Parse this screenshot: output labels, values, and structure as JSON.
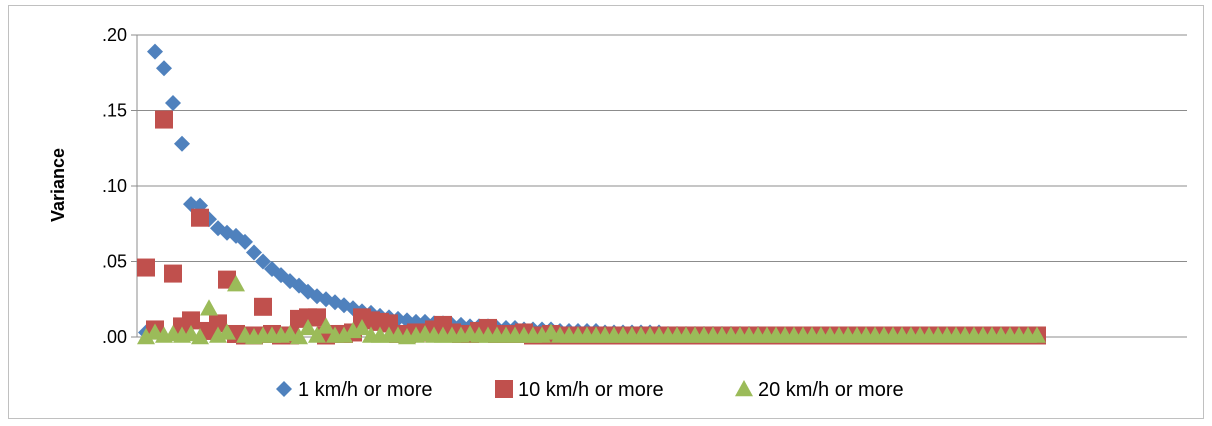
{
  "chart_data": {
    "type": "scatter",
    "title": "",
    "xlabel": "",
    "ylabel": "Variance",
    "ylim": [
      0,
      0.2
    ],
    "yticks": [
      0,
      0.05,
      0.1,
      0.15,
      0.2
    ],
    "ytick_labels": [
      ".00",
      ".05",
      ".10",
      ".15",
      ".20"
    ],
    "xlim": [
      0,
      100
    ],
    "grid": "horizontal",
    "legend_position": "bottom",
    "series": [
      {
        "name": "1 km/h or more",
        "marker": "diamond",
        "color": "#4f81bd",
        "x": [
          1,
          2,
          3,
          4,
          5,
          6,
          7,
          8,
          9,
          10,
          11,
          12,
          13,
          14,
          15,
          16,
          17,
          18,
          19,
          20,
          21,
          22,
          23,
          24,
          25,
          26,
          27,
          28,
          29,
          30,
          31,
          32,
          33,
          34,
          35,
          36,
          37,
          38,
          39,
          40,
          41,
          42,
          43,
          44,
          45,
          46,
          47,
          48,
          49,
          50,
          51,
          52,
          53,
          54,
          55,
          56,
          57,
          58,
          59,
          60,
          61,
          62,
          63,
          64,
          65,
          66,
          67,
          68,
          69,
          70,
          71,
          72,
          73,
          74,
          75,
          76,
          77,
          78,
          79,
          80,
          81,
          82,
          83,
          84,
          85,
          86,
          87,
          88,
          89,
          90,
          91,
          92,
          93,
          94,
          95,
          96,
          97,
          98,
          99,
          100
        ],
        "y": [
          0.003,
          0.189,
          0.178,
          0.155,
          0.128,
          0.088,
          0.087,
          0.078,
          0.072,
          0.069,
          0.067,
          0.063,
          0.056,
          0.05,
          0.045,
          0.041,
          0.037,
          0.034,
          0.03,
          0.027,
          0.025,
          0.023,
          0.021,
          0.019,
          0.017,
          0.016,
          0.014,
          0.013,
          0.012,
          0.011,
          0.01,
          0.01,
          0.009,
          0.009,
          0.008,
          0.008,
          0.007,
          0.007,
          0.007,
          0.006,
          0.006,
          0.006,
          0.005,
          0.005,
          0.005,
          0.005,
          0.004,
          0.004,
          0.004,
          0.004,
          0.004,
          0.003,
          0.003,
          0.003,
          0.003,
          0.003,
          0.003,
          0.003,
          0.002,
          0.002,
          0.002,
          0.002,
          0.002,
          0.002,
          0.002,
          0.002,
          0.002,
          0.002,
          0.002,
          0.001,
          0.001,
          0.001,
          0.001,
          0.001,
          0.001,
          0.001,
          0.001,
          0.001,
          0.001,
          0.001,
          0.001,
          0.001,
          0.001,
          0.001,
          0.001,
          0.001,
          0.001,
          0.001,
          0.001,
          0.001,
          0.001,
          0.001,
          0.001,
          0.001,
          0.001,
          0.001,
          0.001,
          0.001,
          0.001,
          0.001
        ]
      },
      {
        "name": "10 km/h or more",
        "marker": "square",
        "color": "#c0504d",
        "x": [
          1,
          2,
          3,
          4,
          5,
          6,
          7,
          8,
          9,
          10,
          11,
          12,
          13,
          14,
          15,
          16,
          17,
          18,
          19,
          20,
          21,
          22,
          23,
          24,
          25,
          26,
          27,
          28,
          29,
          30,
          31,
          32,
          33,
          34,
          35,
          36,
          37,
          38,
          39,
          40,
          41,
          42,
          43,
          44,
          45,
          46,
          47,
          48,
          49,
          50,
          51,
          52,
          53,
          54,
          55,
          56,
          57,
          58,
          59,
          60,
          61,
          62,
          63,
          64,
          65,
          66,
          67,
          68,
          69,
          70,
          71,
          72,
          73,
          74,
          75,
          76,
          77,
          78,
          79,
          80,
          81,
          82,
          83,
          84,
          85,
          86,
          87,
          88,
          89,
          90,
          91,
          92,
          93,
          94,
          95,
          96,
          97,
          98,
          99,
          100
        ],
        "y": [
          0.046,
          0.005,
          0.144,
          0.042,
          0.007,
          0.011,
          0.079,
          0.004,
          0.009,
          0.038,
          0.002,
          0.001,
          0.001,
          0.02,
          0.002,
          0.001,
          0.001,
          0.012,
          0.013,
          0.013,
          0.001,
          0.002,
          0.002,
          0.003,
          0.013,
          0.011,
          0.01,
          0.009,
          0.002,
          0.002,
          0.003,
          0.003,
          0.005,
          0.008,
          0.003,
          0.002,
          0.002,
          0.004,
          0.006,
          0.002,
          0.002,
          0.002,
          0.003,
          0.001,
          0.001,
          0.002,
          0.001,
          0.001,
          0.001,
          0.001,
          0.001,
          0.001,
          0.001,
          0.001,
          0.001,
          0.001,
          0.001,
          0.001,
          0.001,
          0.001,
          0.001,
          0.001,
          0.001,
          0.001,
          0.001,
          0.001,
          0.001,
          0.001,
          0.001,
          0.001,
          0.001,
          0.001,
          0.001,
          0.001,
          0.001,
          0.001,
          0.001,
          0.001,
          0.001,
          0.001,
          0.001,
          0.001,
          0.001,
          0.001,
          0.001,
          0.001,
          0.001,
          0.001,
          0.001,
          0.001,
          0.001,
          0.001,
          0.001,
          0.001,
          0.001,
          0.001,
          0.001,
          0.001,
          0.001,
          0.001
        ]
      },
      {
        "name": "20 km/h or more",
        "marker": "triangle",
        "color": "#9bbb59",
        "x": [
          1,
          2,
          3,
          4,
          5,
          6,
          7,
          8,
          9,
          10,
          11,
          12,
          13,
          14,
          15,
          16,
          17,
          18,
          19,
          20,
          21,
          22,
          23,
          24,
          25,
          26,
          27,
          28,
          29,
          30,
          31,
          32,
          33,
          34,
          35,
          36,
          37,
          38,
          39,
          40,
          41,
          42,
          43,
          44,
          45,
          46,
          47,
          48,
          49,
          50,
          51,
          52,
          53,
          54,
          55,
          56,
          57,
          58,
          59,
          60,
          61,
          62,
          63,
          64,
          65,
          66,
          67,
          68,
          69,
          70,
          71,
          72,
          73,
          74,
          75,
          76,
          77,
          78,
          79,
          80,
          81,
          82,
          83,
          84,
          85,
          86,
          87,
          88,
          89,
          90,
          91,
          92,
          93,
          94,
          95,
          96,
          97,
          98,
          99,
          100
        ],
        "y": [
          0.0,
          0.003,
          0.001,
          0.002,
          0.001,
          0.002,
          0.0,
          0.019,
          0.001,
          0.003,
          0.035,
          0.001,
          0.0,
          0.001,
          0.001,
          0.001,
          0.002,
          0.0,
          0.006,
          0.001,
          0.007,
          0.001,
          0.001,
          0.004,
          0.006,
          0.001,
          0.001,
          0.001,
          0.001,
          0.0,
          0.001,
          0.002,
          0.001,
          0.001,
          0.001,
          0.001,
          0.002,
          0.001,
          0.001,
          0.001,
          0.001,
          0.001,
          0.001,
          0.001,
          0.001,
          0.003,
          0.001,
          0.001,
          0.001,
          0.001,
          0.001,
          0.001,
          0.001,
          0.001,
          0.001,
          0.001,
          0.001,
          0.001,
          0.001,
          0.001,
          0.001,
          0.001,
          0.001,
          0.001,
          0.001,
          0.001,
          0.001,
          0.001,
          0.001,
          0.001,
          0.001,
          0.001,
          0.001,
          0.001,
          0.001,
          0.001,
          0.001,
          0.001,
          0.001,
          0.001,
          0.001,
          0.001,
          0.001,
          0.001,
          0.001,
          0.001,
          0.001,
          0.001,
          0.001,
          0.001,
          0.001,
          0.001,
          0.001,
          0.001,
          0.001,
          0.001,
          0.001,
          0.001,
          0.001,
          0.001
        ]
      }
    ]
  }
}
